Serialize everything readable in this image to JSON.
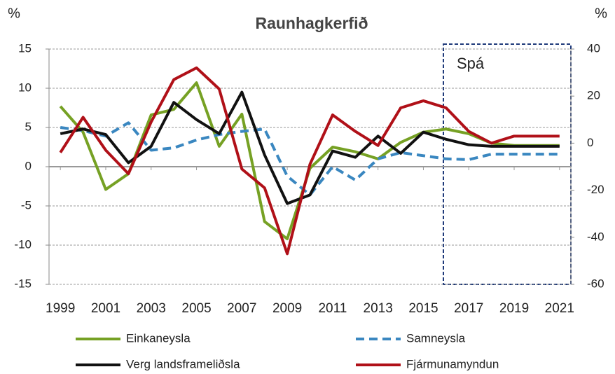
{
  "chart_data": {
    "type": "line",
    "title": "Raunhagkerfið",
    "ylabel": "%",
    "y2label": "%",
    "annotation": "Spá",
    "x": [
      1999,
      2000,
      2001,
      2002,
      2003,
      2004,
      2005,
      2006,
      2007,
      2008,
      2009,
      2010,
      2011,
      2012,
      2013,
      2014,
      2015,
      2016,
      2017,
      2018,
      2019,
      2020,
      2021
    ],
    "xlim": [
      1998.5,
      2021.5
    ],
    "xticks": [
      1999,
      2001,
      2003,
      2005,
      2007,
      2009,
      2011,
      2013,
      2015,
      2017,
      2019,
      2021
    ],
    "ylim": [
      -15,
      15
    ],
    "yticks": [
      15,
      10,
      5,
      0,
      -5,
      -10,
      -15
    ],
    "y2lim": [
      -60,
      40
    ],
    "y2ticks": [
      40,
      20,
      0,
      -20,
      -40,
      -60
    ],
    "grid": true,
    "series": [
      {
        "name": "Einkaneysla",
        "color": "#76a124",
        "linestyle": "solid",
        "values": [
          7.7,
          4.4,
          -2.9,
          -0.9,
          6.6,
          7.3,
          10.7,
          2.6,
          6.7,
          -7.0,
          -9.2,
          -0.2,
          2.5,
          1.9,
          1.0,
          3.1,
          4.4,
          4.8,
          4.2,
          3.0,
          2.7,
          2.7,
          2.7
        ]
      },
      {
        "name": "Samneysla",
        "color": "#3a87c0",
        "linestyle": "dashed",
        "values": [
          5.0,
          4.6,
          3.9,
          5.6,
          2.1,
          2.4,
          3.4,
          4.1,
          4.5,
          4.8,
          -1.2,
          -3.6,
          0.0,
          -1.7,
          1.0,
          1.8,
          1.4,
          1.0,
          0.9,
          1.6,
          1.6,
          1.6,
          1.6
        ]
      },
      {
        "name": "Verg landsframeliðsla",
        "color": "#111111",
        "linestyle": "solid",
        "values": [
          4.2,
          4.8,
          4.1,
          0.5,
          2.6,
          8.2,
          6.0,
          4.2,
          9.5,
          1.5,
          -4.7,
          -3.6,
          2.0,
          1.2,
          3.9,
          1.7,
          4.4,
          3.5,
          2.8,
          2.6,
          2.6,
          2.6,
          2.6
        ]
      },
      {
        "name": "Fjármunamyndun",
        "color": "#b01018",
        "linestyle": "solid",
        "axis": "y2",
        "values": [
          -4,
          11,
          -3,
          -13,
          9,
          27,
          32,
          23,
          -11,
          -19,
          -47,
          -9,
          12,
          5,
          -1,
          15,
          18,
          15,
          5,
          0,
          3,
          3,
          3
        ]
      }
    ]
  }
}
